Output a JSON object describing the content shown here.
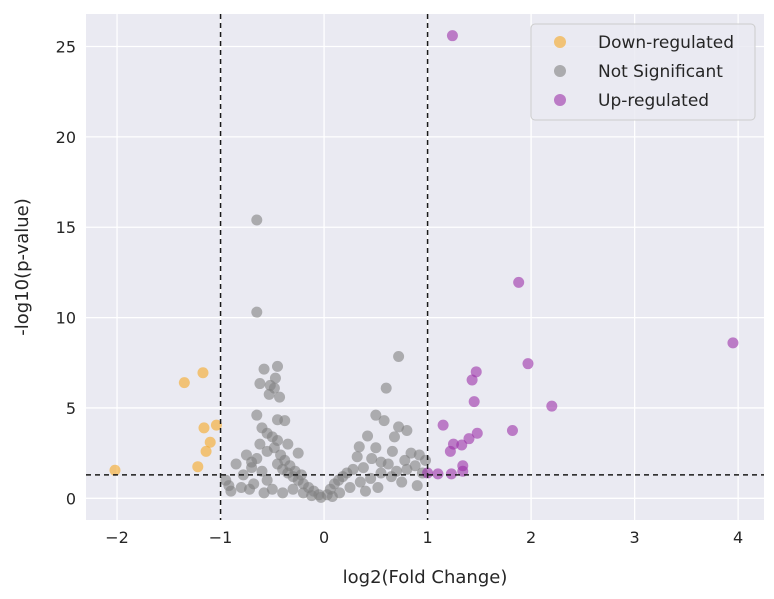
{
  "chart_data": {
    "type": "scatter",
    "xlabel": "log2(Fold Change)",
    "ylabel": "-log10(p-value)",
    "xlim": [
      -2.3,
      4.25
    ],
    "ylim": [
      -1.2,
      26.8
    ],
    "xticks": [
      -2,
      -1,
      0,
      1,
      2,
      3,
      4
    ],
    "yticks": [
      0,
      5,
      10,
      15,
      20,
      25
    ],
    "grid": true,
    "legend_position": "top-right",
    "thresholds": {
      "x": [
        -1,
        1
      ],
      "y": 1.3
    },
    "series": [
      {
        "name": "Down-regulated",
        "color": "#f5a623",
        "points": [
          [
            -2.02,
            1.55
          ],
          [
            -1.35,
            6.4
          ],
          [
            -1.17,
            6.95
          ],
          [
            -1.16,
            3.9
          ],
          [
            -1.04,
            4.05
          ],
          [
            -1.1,
            3.1
          ],
          [
            -1.14,
            2.6
          ],
          [
            -1.22,
            1.75
          ]
        ]
      },
      {
        "name": "Not Significant",
        "color": "#808080",
        "points": [
          [
            -0.65,
            15.4
          ],
          [
            -0.65,
            10.3
          ],
          [
            -0.45,
            7.3
          ],
          [
            -0.58,
            7.15
          ],
          [
            -0.47,
            6.65
          ],
          [
            -0.62,
            6.35
          ],
          [
            -0.52,
            6.25
          ],
          [
            -0.48,
            6.1
          ],
          [
            -0.53,
            5.75
          ],
          [
            -0.43,
            5.6
          ],
          [
            -0.65,
            4.6
          ],
          [
            -0.45,
            4.35
          ],
          [
            -0.38,
            4.3
          ],
          [
            -0.6,
            3.9
          ],
          [
            -0.55,
            3.6
          ],
          [
            -0.5,
            3.4
          ],
          [
            -0.45,
            3.2
          ],
          [
            -0.62,
            3.0
          ],
          [
            -0.35,
            3.0
          ],
          [
            -0.25,
            2.5
          ],
          [
            -0.48,
            2.8
          ],
          [
            -0.55,
            2.6
          ],
          [
            -0.75,
            2.4
          ],
          [
            -0.85,
            1.9
          ],
          [
            -0.7,
            1.7
          ],
          [
            -0.6,
            1.5
          ],
          [
            -0.45,
            1.9
          ],
          [
            -0.4,
            1.6
          ],
          [
            -0.35,
            1.4
          ],
          [
            -0.3,
            1.2
          ],
          [
            -0.25,
            1.0
          ],
          [
            -0.2,
            0.8
          ],
          [
            -0.15,
            0.6
          ],
          [
            -0.1,
            0.4
          ],
          [
            -0.05,
            0.2
          ],
          [
            -0.9,
            0.4
          ],
          [
            -0.92,
            0.7
          ],
          [
            -0.95,
            1.0
          ],
          [
            -0.8,
            0.6
          ],
          [
            -0.68,
            0.8
          ],
          [
            -0.55,
            1.0
          ],
          [
            -0.5,
            0.5
          ],
          [
            -0.4,
            0.3
          ],
          [
            -0.3,
            0.5
          ],
          [
            -0.2,
            0.3
          ],
          [
            -0.12,
            0.15
          ],
          [
            -0.03,
            0.05
          ],
          [
            -0.7,
            2.0
          ],
          [
            -0.65,
            2.2
          ],
          [
            -0.42,
            2.4
          ],
          [
            -0.38,
            2.1
          ],
          [
            -0.33,
            1.8
          ],
          [
            -0.28,
            1.5
          ],
          [
            -0.22,
            1.3
          ],
          [
            -0.78,
            1.3
          ],
          [
            -0.72,
            0.5
          ],
          [
            -0.58,
            0.3
          ],
          [
            0.72,
            7.85
          ],
          [
            0.6,
            6.1
          ],
          [
            0.5,
            4.6
          ],
          [
            0.58,
            4.3
          ],
          [
            0.72,
            3.95
          ],
          [
            0.8,
            3.75
          ],
          [
            0.42,
            3.45
          ],
          [
            0.68,
            3.4
          ],
          [
            0.34,
            2.85
          ],
          [
            0.5,
            2.8
          ],
          [
            0.66,
            2.6
          ],
          [
            0.84,
            2.5
          ],
          [
            0.92,
            2.4
          ],
          [
            0.32,
            2.3
          ],
          [
            0.46,
            2.2
          ],
          [
            0.55,
            2.0
          ],
          [
            0.62,
            1.9
          ],
          [
            0.38,
            1.7
          ],
          [
            0.28,
            1.6
          ],
          [
            0.22,
            1.4
          ],
          [
            0.18,
            1.2
          ],
          [
            0.14,
            1.0
          ],
          [
            0.1,
            0.8
          ],
          [
            0.06,
            0.5
          ],
          [
            0.03,
            0.2
          ],
          [
            0.8,
            1.6
          ],
          [
            0.88,
            1.8
          ],
          [
            0.95,
            1.4
          ],
          [
            0.9,
            0.7
          ],
          [
            0.75,
            0.9
          ],
          [
            0.65,
            1.2
          ],
          [
            0.55,
            1.4
          ],
          [
            0.45,
            1.1
          ],
          [
            0.35,
            0.9
          ],
          [
            0.25,
            0.6
          ],
          [
            0.15,
            0.3
          ],
          [
            0.7,
            1.5
          ],
          [
            0.78,
            2.1
          ],
          [
            0.98,
            2.1
          ],
          [
            0.52,
            0.6
          ],
          [
            0.4,
            0.4
          ],
          [
            0.08,
            0.1
          ]
        ]
      },
      {
        "name": "Up-regulated",
        "color": "#9b30a8",
        "points": [
          [
            1.24,
            25.6
          ],
          [
            1.88,
            11.95
          ],
          [
            3.95,
            8.6
          ],
          [
            1.97,
            7.45
          ],
          [
            1.47,
            7.0
          ],
          [
            1.43,
            6.55
          ],
          [
            1.45,
            5.35
          ],
          [
            2.2,
            5.1
          ],
          [
            1.15,
            4.05
          ],
          [
            1.82,
            3.75
          ],
          [
            1.48,
            3.6
          ],
          [
            1.4,
            3.3
          ],
          [
            1.25,
            3.0
          ],
          [
            1.33,
            2.95
          ],
          [
            1.22,
            2.6
          ],
          [
            1.34,
            1.8
          ],
          [
            1.34,
            1.5
          ],
          [
            1.23,
            1.35
          ],
          [
            1.1,
            1.35
          ],
          [
            1.0,
            1.4
          ]
        ]
      }
    ]
  }
}
